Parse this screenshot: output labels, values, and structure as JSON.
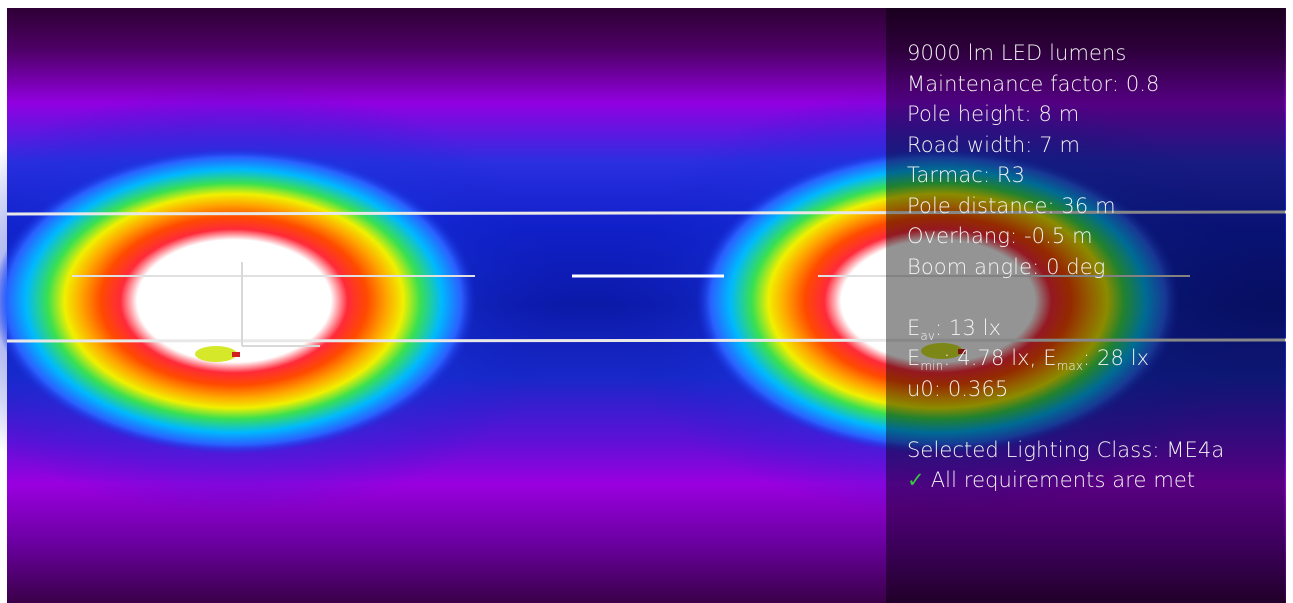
{
  "colors": {
    "panel_text": "#f3f3f3",
    "check": "#35c93a",
    "heatmap_scale": [
      "#2a0030",
      "#8a00d8",
      "#1c2fd8",
      "#00a0ff",
      "#00d860",
      "#ffe800",
      "#ff6a00",
      "#e8002a",
      "#ffffff"
    ]
  },
  "panel": {
    "lumens": "9000 lm LED lumens",
    "maintenance": "Maintenance factor: 0.8",
    "pole_height": "Pole height: 8 m",
    "road_width": "Road width: 7 m",
    "tarmac": "Tarmac: R3",
    "pole_distance": "Pole distance: 36 m",
    "overhang": "Overhang: -0.5 m",
    "boom_angle": "Boom angle: 0 deg",
    "eav": {
      "sym": "E",
      "sub": "av",
      "value": ": 13 lx"
    },
    "emin": {
      "sym": "E",
      "sub": "min",
      "value": ": 4.78 lx, "
    },
    "emax": {
      "sym": "E",
      "sub": "max",
      "value": ": 28 lx"
    },
    "u0": "u0: 0.365",
    "lighting_class": "Selected Lighting Class: ME4a",
    "requirements": "All requirements are met",
    "check_icon": "check-icon"
  }
}
